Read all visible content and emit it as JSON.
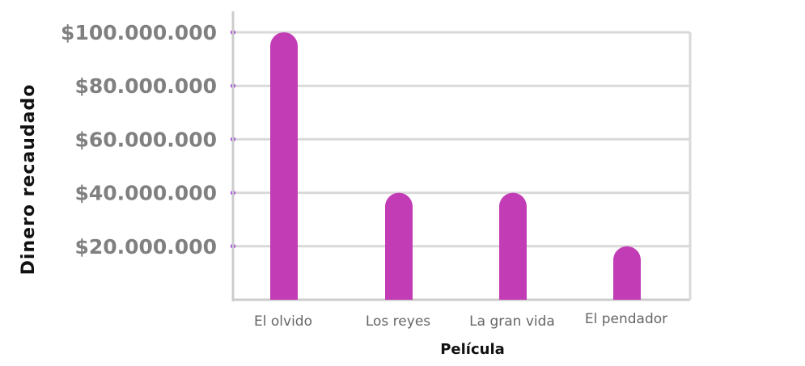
{
  "chart_data": {
    "type": "bar",
    "categories": [
      "El olvido",
      "Los reyes",
      "La gran vida",
      "El pendador"
    ],
    "values": [
      100000000,
      40000000,
      40000000,
      20000000
    ],
    "xlabel": "Película",
    "ylabel": "Dinero recaudado",
    "ylim": [
      0,
      100000000
    ],
    "yticks": [
      20000000,
      40000000,
      60000000,
      80000000,
      100000000
    ],
    "ytick_labels": [
      "$20.000.000",
      "$40.000.000",
      "$60.000.000",
      "$80.000.000",
      "$100.000.000"
    ],
    "grid": true,
    "colors": {
      "bar": "#c23db5",
      "tick_marker": "#9b30d9",
      "grid": "#d9d9d9",
      "axis": "#cccccc"
    }
  }
}
